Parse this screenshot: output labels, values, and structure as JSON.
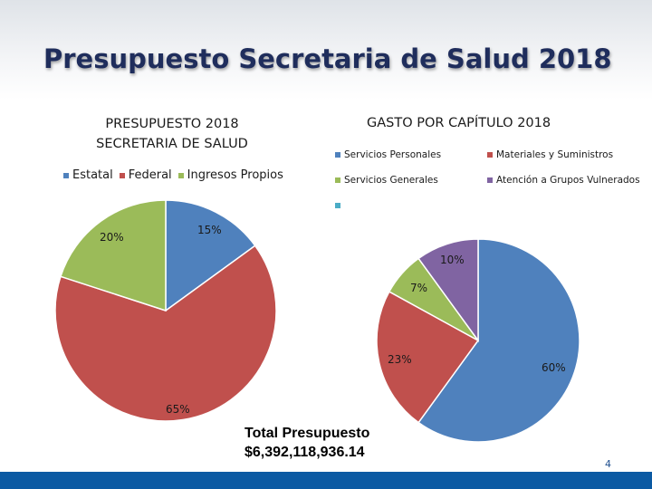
{
  "slide": {
    "title": "Presupuesto Secretaria de Salud 2018",
    "total_line1": "Total Presupuesto",
    "total_line2": "$6,392,118,936.14",
    "page_number": "4"
  },
  "chart_data": [
    {
      "type": "pie",
      "title_line1": "PRESUPUESTO 2018",
      "title_line2": "SECRETARIA DE SALUD",
      "legend_position": "top",
      "categories": [
        "Estatal",
        "Federal",
        "Ingresos Propios"
      ],
      "values": [
        15,
        65,
        20
      ],
      "labels": [
        "15%",
        "65%",
        "20%"
      ],
      "colors": [
        "#4f81bd",
        "#c0504d",
        "#9bbb59"
      ]
    },
    {
      "type": "pie",
      "title": "GASTO POR CAPÍTULO 2018",
      "legend_position": "top",
      "categories": [
        "Servicios Personales",
        "Materiales y Suministros",
        "Servicios Generales",
        "Atención a Grupos Vulnerados",
        ""
      ],
      "values": [
        60,
        23,
        7,
        10
      ],
      "labels": [
        "60%",
        "23%",
        "7%",
        "10%"
      ],
      "colors": [
        "#4f81bd",
        "#c0504d",
        "#9bbb59",
        "#8064a2",
        "#4bacc6"
      ]
    }
  ]
}
